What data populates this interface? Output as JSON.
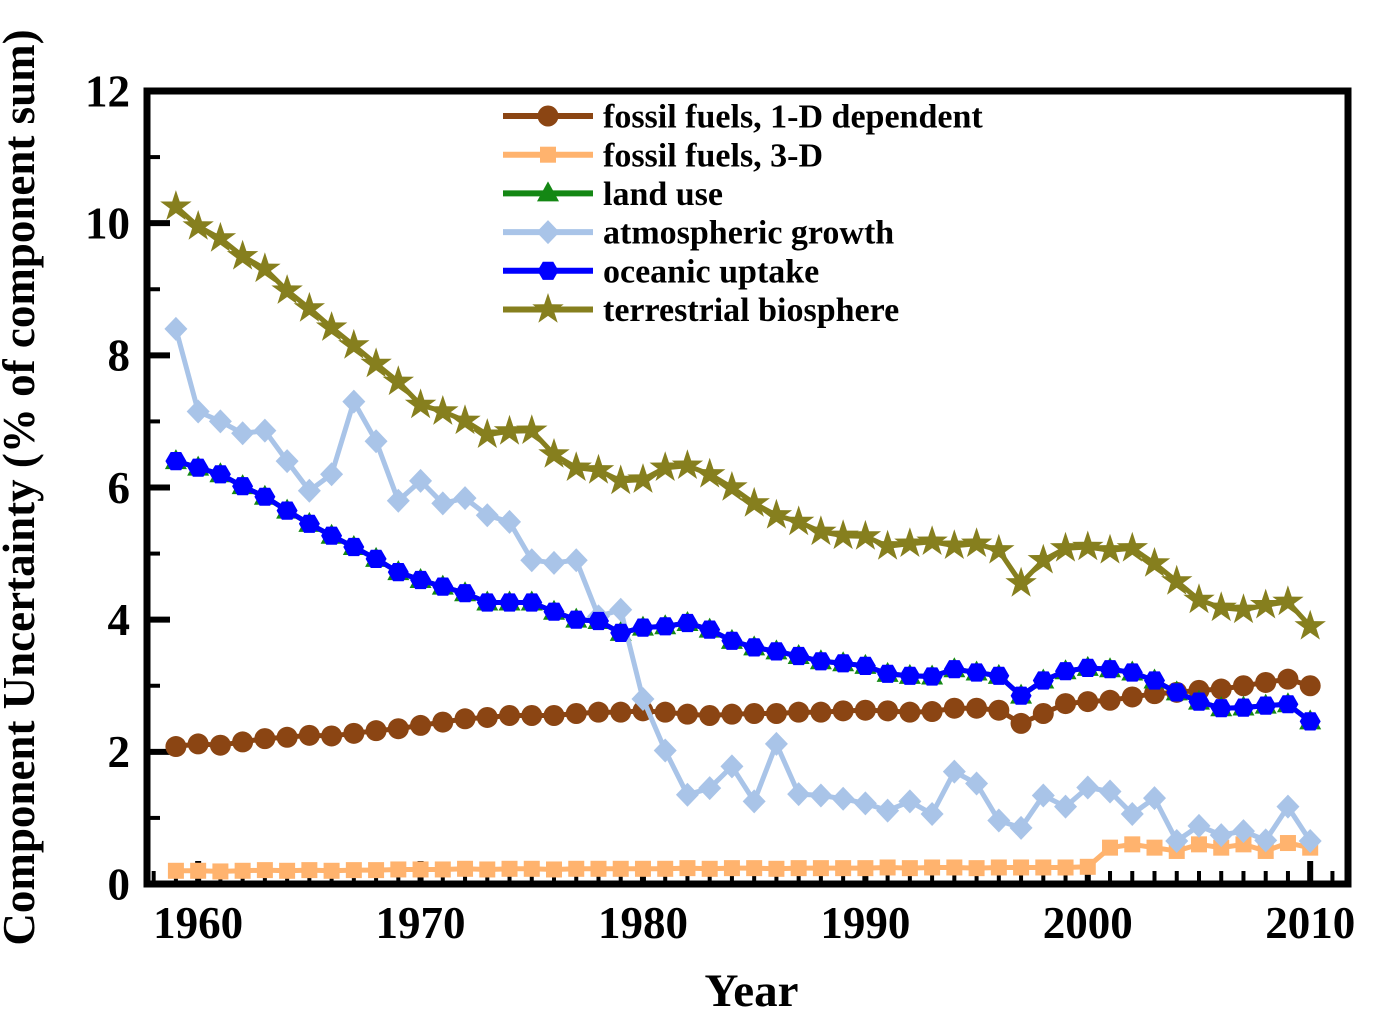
{
  "chart_data": {
    "type": "line",
    "title": "",
    "xlabel": "Year",
    "ylabel": "Component Uncertainty (% of component sum)",
    "x_range": [
      1957.7,
      2011.7
    ],
    "y_range": [
      0,
      12
    ],
    "x_major_ticks": [
      1960,
      1970,
      1980,
      1990,
      2000,
      2010
    ],
    "x_minor_tick_step": 1,
    "y_major_ticks": [
      0,
      2,
      4,
      6,
      8,
      10,
      12
    ],
    "y_minor_ticks": [
      1,
      3,
      5,
      7,
      9,
      11
    ],
    "grid": false,
    "legend_position": "top-center",
    "frame_color": "#000000",
    "background_color": "#ffffff",
    "years": [
      1959,
      1960,
      1961,
      1962,
      1963,
      1964,
      1965,
      1966,
      1967,
      1968,
      1969,
      1970,
      1971,
      1972,
      1973,
      1974,
      1975,
      1976,
      1977,
      1978,
      1979,
      1980,
      1981,
      1982,
      1983,
      1984,
      1985,
      1986,
      1987,
      1988,
      1989,
      1990,
      1991,
      1992,
      1993,
      1994,
      1995,
      1996,
      1997,
      1998,
      1999,
      2000,
      2001,
      2002,
      2003,
      2004,
      2005,
      2006,
      2007,
      2008,
      2009,
      2010
    ],
    "series": [
      {
        "name": "fossil fuels, 1-D dependent",
        "color": "#8B4513",
        "marker": "circle",
        "values": [
          2.08,
          2.12,
          2.1,
          2.15,
          2.2,
          2.22,
          2.25,
          2.24,
          2.28,
          2.32,
          2.35,
          2.4,
          2.45,
          2.5,
          2.52,
          2.55,
          2.55,
          2.55,
          2.58,
          2.6,
          2.6,
          2.62,
          2.6,
          2.57,
          2.55,
          2.57,
          2.58,
          2.58,
          2.6,
          2.6,
          2.62,
          2.63,
          2.62,
          2.6,
          2.61,
          2.66,
          2.66,
          2.63,
          2.43,
          2.58,
          2.73,
          2.76,
          2.78,
          2.83,
          2.88,
          2.9,
          2.93,
          2.95,
          3.0,
          3.05,
          3.1,
          3.0
        ]
      },
      {
        "name": "fossil fuels, 3-D",
        "color": "#FFB36E",
        "marker": "square",
        "values": [
          0.2,
          0.2,
          0.19,
          0.2,
          0.21,
          0.2,
          0.21,
          0.2,
          0.21,
          0.21,
          0.22,
          0.22,
          0.22,
          0.23,
          0.22,
          0.23,
          0.23,
          0.22,
          0.23,
          0.23,
          0.23,
          0.23,
          0.23,
          0.24,
          0.23,
          0.24,
          0.24,
          0.23,
          0.24,
          0.24,
          0.24,
          0.24,
          0.25,
          0.24,
          0.25,
          0.25,
          0.24,
          0.25,
          0.25,
          0.25,
          0.25,
          0.26,
          0.55,
          0.6,
          0.55,
          0.5,
          0.6,
          0.55,
          0.6,
          0.5,
          0.62,
          0.55
        ]
      },
      {
        "name": "land use",
        "color": "#148714",
        "marker": "triangle",
        "values": [
          6.4,
          6.3,
          6.2,
          6.02,
          5.86,
          5.65,
          5.45,
          5.27,
          5.1,
          4.92,
          4.72,
          4.6,
          4.5,
          4.4,
          4.26,
          4.26,
          4.26,
          4.12,
          4.0,
          3.98,
          3.8,
          3.88,
          3.9,
          3.95,
          3.85,
          3.68,
          3.58,
          3.52,
          3.45,
          3.37,
          3.34,
          3.3,
          3.18,
          3.15,
          3.14,
          3.25,
          3.2,
          3.15,
          2.85,
          3.08,
          3.22,
          3.27,
          3.25,
          3.2,
          3.08,
          2.9,
          2.76,
          2.66,
          2.67,
          2.7,
          2.72,
          2.46
        ]
      },
      {
        "name": "atmospheric growth",
        "color": "#A9C4E8",
        "marker": "diamond",
        "values": [
          8.4,
          7.15,
          7.0,
          6.82,
          6.86,
          6.4,
          5.95,
          6.2,
          7.3,
          6.7,
          5.8,
          6.1,
          5.76,
          5.84,
          5.58,
          5.48,
          4.9,
          4.86,
          4.9,
          4.05,
          4.15,
          2.8,
          2.02,
          1.35,
          1.45,
          1.78,
          1.25,
          2.12,
          1.36,
          1.34,
          1.29,
          1.22,
          1.11,
          1.25,
          1.06,
          1.7,
          1.52,
          0.96,
          0.85,
          1.34,
          1.17,
          1.46,
          1.4,
          1.06,
          1.3,
          0.65,
          0.88,
          0.74,
          0.8,
          0.66,
          1.17,
          0.65
        ]
      },
      {
        "name": "oceanic uptake",
        "color": "#0000FF",
        "marker": "hexagon",
        "values": [
          6.4,
          6.3,
          6.2,
          6.02,
          5.86,
          5.65,
          5.45,
          5.27,
          5.1,
          4.92,
          4.72,
          4.6,
          4.5,
          4.4,
          4.26,
          4.26,
          4.26,
          4.12,
          4.0,
          3.98,
          3.8,
          3.88,
          3.9,
          3.95,
          3.85,
          3.68,
          3.58,
          3.52,
          3.45,
          3.37,
          3.34,
          3.3,
          3.18,
          3.15,
          3.14,
          3.25,
          3.2,
          3.15,
          2.85,
          3.08,
          3.22,
          3.27,
          3.25,
          3.2,
          3.08,
          2.9,
          2.76,
          2.66,
          2.67,
          2.7,
          2.72,
          2.46
        ]
      },
      {
        "name": "terrestrial biosphere",
        "color": "#867F1E",
        "marker": "star",
        "values": [
          10.25,
          9.95,
          9.77,
          9.5,
          9.31,
          8.98,
          8.71,
          8.42,
          8.15,
          7.87,
          7.6,
          7.25,
          7.15,
          7.01,
          6.8,
          6.85,
          6.86,
          6.5,
          6.3,
          6.26,
          6.1,
          6.12,
          6.3,
          6.33,
          6.2,
          6.0,
          5.76,
          5.58,
          5.48,
          5.33,
          5.27,
          5.26,
          5.11,
          5.15,
          5.18,
          5.12,
          5.15,
          5.05,
          4.55,
          4.9,
          5.08,
          5.1,
          5.05,
          5.08,
          4.85,
          4.58,
          4.3,
          4.18,
          4.15,
          4.22,
          4.27,
          3.9
        ]
      }
    ]
  }
}
